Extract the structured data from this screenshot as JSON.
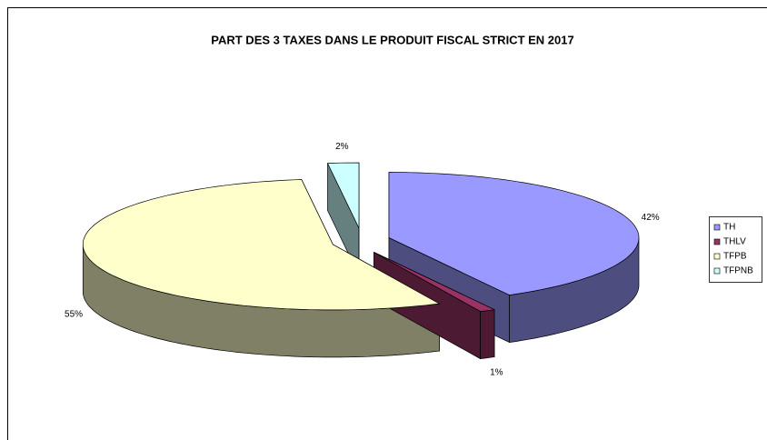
{
  "chart_data": {
    "type": "pie",
    "title": "PART DES 3 TAXES DANS LE PRODUIT FISCAL STRICT EN 2017",
    "categories": [
      "TH",
      "THLV",
      "TFPB",
      "TFPNB"
    ],
    "values": [
      42,
      1,
      55,
      2
    ],
    "value_labels": [
      "42%",
      "1%",
      "55%",
      "2%"
    ],
    "colors": [
      "#9999ff",
      "#993366",
      "#ffffcc",
      "#ccffff"
    ],
    "legend": "right"
  }
}
